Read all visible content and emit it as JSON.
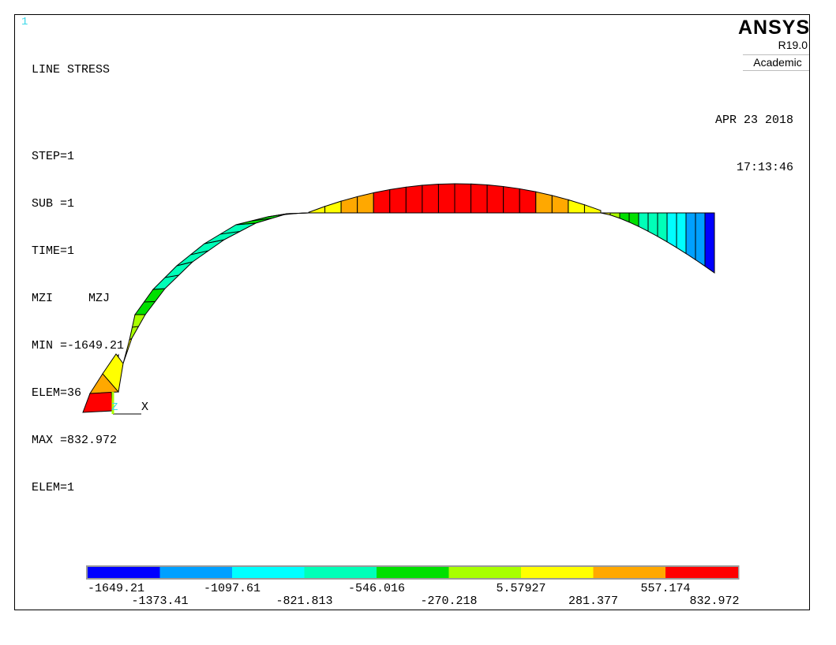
{
  "window_number": "1",
  "plot": {
    "title": "LINE STRESS",
    "step": "STEP=1",
    "sub": "SUB =1",
    "time": "TIME=1",
    "items": "MZI     MZJ",
    "min": "MIN =-1649.21",
    "min_elem": "ELEM=36",
    "max": "MAX =832.972",
    "max_elem": "ELEM=1"
  },
  "brand": {
    "name": "ANSYS",
    "version": "R19.0",
    "edition": "Academic"
  },
  "datetime": {
    "date": "APR 23 2018",
    "time": "17:13:46"
  },
  "triad": {
    "z_label": "Z",
    "x_label": "X"
  },
  "legend": {
    "colors": [
      "#0000ff",
      "#00a0ff",
      "#00ffff",
      "#00ffb8",
      "#00e000",
      "#a8ff00",
      "#ffff00",
      "#ffa800",
      "#ff0000"
    ],
    "upper_labels": [
      "-1649.21",
      "-1097.61",
      "-546.016",
      "5.57927",
      "557.174"
    ],
    "lower_labels": [
      "-1373.41",
      "-821.813",
      "-270.218",
      "281.377",
      "832.972"
    ]
  }
}
